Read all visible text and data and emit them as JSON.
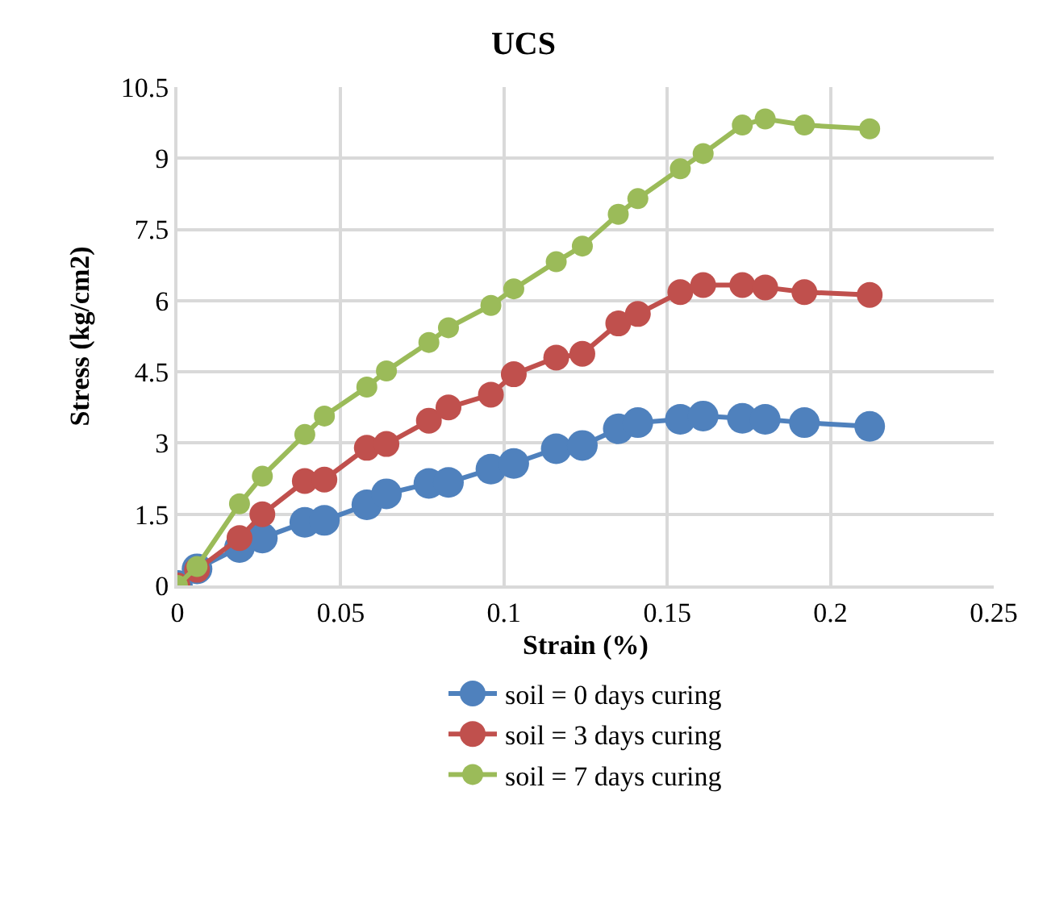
{
  "chart_data": {
    "type": "line",
    "title": "UCS",
    "xlabel": "Strain (%)",
    "ylabel": "Stress (kg/cm2)",
    "x": [
      0,
      0.006,
      0.019,
      0.026,
      0.039,
      0.045,
      0.058,
      0.064,
      0.077,
      0.083,
      0.096,
      0.103,
      0.116,
      0.124,
      0.135,
      0.141,
      0.154,
      0.161,
      0.173,
      0.18,
      0.192,
      0.212
    ],
    "series": [
      {
        "name": "soil = 0 days curing",
        "color": "#4f81bd",
        "values": [
          0,
          0.35,
          0.8,
          1.0,
          1.33,
          1.37,
          1.7,
          1.93,
          2.15,
          2.17,
          2.45,
          2.57,
          2.88,
          2.95,
          3.3,
          3.43,
          3.5,
          3.57,
          3.52,
          3.5,
          3.43,
          3.35
        ]
      },
      {
        "name": "soil = 3 days curing",
        "color": "#c0504d",
        "values": [
          0,
          0.33,
          1.0,
          1.5,
          2.2,
          2.23,
          2.9,
          2.98,
          3.47,
          3.75,
          4.02,
          4.45,
          4.8,
          4.88,
          5.52,
          5.72,
          6.18,
          6.33,
          6.33,
          6.28,
          6.18,
          6.12
        ]
      },
      {
        "name": "soil = 7 days curing",
        "color": "#9bbb59",
        "values": [
          0,
          0.4,
          1.72,
          2.3,
          3.18,
          3.57,
          4.18,
          4.52,
          5.12,
          5.43,
          5.9,
          6.25,
          6.82,
          7.15,
          7.82,
          8.15,
          8.78,
          9.1,
          9.7,
          9.83,
          9.7,
          9.62
        ]
      }
    ],
    "xlim": [
      0,
      0.25
    ],
    "xticks": [
      0,
      0.05,
      0.1,
      0.15,
      0.2,
      0.25
    ],
    "ylim": [
      0,
      10.5
    ],
    "yticks": [
      0,
      1.5,
      3,
      4.5,
      6,
      7.5,
      9,
      10.5
    ],
    "grid": true,
    "legend": "bottom",
    "marker": "circle",
    "line_style": "solid"
  }
}
